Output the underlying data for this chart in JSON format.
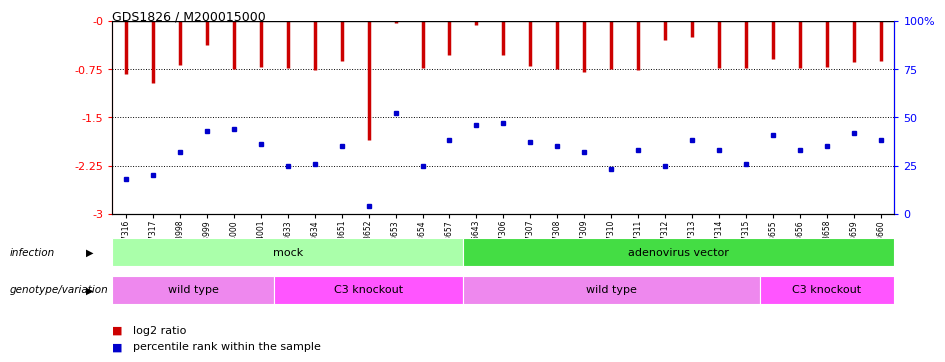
{
  "title": "GDS1826 / M200015000",
  "samples": [
    "GSM87316",
    "GSM87317",
    "GSM93998",
    "GSM93999",
    "GSM94000",
    "GSM94001",
    "GSM93633",
    "GSM93634",
    "GSM93651",
    "GSM93652",
    "GSM93653",
    "GSM93654",
    "GSM93657",
    "GSM86643",
    "GSM87306",
    "GSM87307",
    "GSM87308",
    "GSM87309",
    "GSM87310",
    "GSM87311",
    "GSM87312",
    "GSM87313",
    "GSM87314",
    "GSM87315",
    "GSM93655",
    "GSM93656",
    "GSM93658",
    "GSM93659",
    "GSM93660"
  ],
  "log2_ratio": [
    -0.82,
    -0.97,
    -0.68,
    -0.38,
    -0.75,
    -0.72,
    -0.74,
    -0.77,
    -0.62,
    -1.85,
    -0.04,
    -0.73,
    -0.53,
    -0.06,
    -0.53,
    -0.7,
    -0.75,
    -0.8,
    -0.75,
    -0.77,
    -0.3,
    -0.26,
    -0.74,
    -0.73,
    -0.6,
    -0.73,
    -0.72,
    -0.64,
    -0.62
  ],
  "percentile": [
    18,
    20,
    32,
    43,
    44,
    36,
    25,
    26,
    35,
    4,
    52,
    25,
    38,
    46,
    47,
    37,
    35,
    32,
    23,
    33,
    25,
    38,
    33,
    26,
    41,
    33,
    35,
    42,
    38
  ],
  "infection_groups": [
    {
      "label": "mock",
      "start": 0,
      "end": 13,
      "color": "#aaffaa"
    },
    {
      "label": "adenovirus vector",
      "start": 13,
      "end": 29,
      "color": "#44dd44"
    }
  ],
  "genotype_groups": [
    {
      "label": "wild type",
      "start": 0,
      "end": 6,
      "color": "#ee88ee"
    },
    {
      "label": "C3 knockout",
      "start": 6,
      "end": 13,
      "color": "#ff55ff"
    },
    {
      "label": "wild type",
      "start": 13,
      "end": 24,
      "color": "#ee88ee"
    },
    {
      "label": "C3 knockout",
      "start": 24,
      "end": 29,
      "color": "#ff55ff"
    }
  ],
  "bar_color": "#cc0000",
  "dot_color": "#0000cc",
  "ylim_min": -3.0,
  "ylim_max": 0.0,
  "yticks": [
    0,
    -0.75,
    -1.5,
    -2.25,
    -3.0
  ],
  "ytick_labels": [
    "-0",
    "-0.75",
    "-1.5",
    "-2.25",
    "-3"
  ],
  "right_ytick_percents": [
    0,
    25,
    50,
    75,
    100
  ],
  "right_ytick_labels": [
    "0",
    "25",
    "50",
    "75",
    "100%"
  ],
  "legend_items": [
    {
      "color": "#cc0000",
      "label": "log2 ratio"
    },
    {
      "color": "#0000cc",
      "label": "percentile rank within the sample"
    }
  ]
}
